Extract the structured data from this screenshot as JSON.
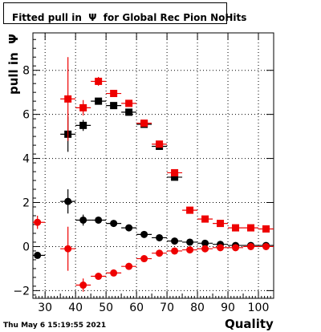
{
  "chart_data": {
    "type": "scatter",
    "title": "Fitted pull in  Ψ  for Global Rec Pion NoHits",
    "xlabel": "Quality",
    "ylabel": "pull in  Ψ",
    "xlim": [
      26,
      105
    ],
    "ylim": [
      -2.35,
      9.7
    ],
    "xticks": [
      30,
      40,
      50,
      60,
      70,
      80,
      90,
      100
    ],
    "yticks": [
      -2,
      0,
      2,
      4,
      6,
      8
    ],
    "grid": true,
    "series": [
      {
        "marker": "square",
        "color": "#000000",
        "points": [
          {
            "x": 37.5,
            "y": 5.1,
            "err": 0.8
          },
          {
            "x": 42.5,
            "y": 5.5,
            "err": 0.25
          },
          {
            "x": 47.5,
            "y": 6.6,
            "err": 0.15
          },
          {
            "x": 52.5,
            "y": 6.4,
            "err": 0.1
          },
          {
            "x": 57.5,
            "y": 6.1,
            "err": 0.1
          },
          {
            "x": 62.5,
            "y": 5.55,
            "err": 0.1
          },
          {
            "x": 67.5,
            "y": 4.55,
            "err": 0.1
          },
          {
            "x": 72.5,
            "y": 3.15,
            "err": 0.1
          }
        ]
      },
      {
        "marker": "square",
        "color": "#ee0000",
        "points": [
          {
            "x": 37.5,
            "y": 6.7,
            "err": 1.9
          },
          {
            "x": 42.5,
            "y": 6.3,
            "err": 0.35
          },
          {
            "x": 47.5,
            "y": 7.5,
            "err": 0.2
          },
          {
            "x": 52.5,
            "y": 6.95,
            "err": 0.1
          },
          {
            "x": 57.5,
            "y": 6.5,
            "err": 0.1
          },
          {
            "x": 62.5,
            "y": 5.6,
            "err": 0.1
          },
          {
            "x": 67.5,
            "y": 4.65,
            "err": 0.1
          },
          {
            "x": 72.5,
            "y": 3.35,
            "err": 0.1
          },
          {
            "x": 77.5,
            "y": 1.65,
            "err": 0.05
          },
          {
            "x": 82.5,
            "y": 1.25,
            "err": 0.05
          },
          {
            "x": 87.5,
            "y": 1.05,
            "err": 0.05
          },
          {
            "x": 92.5,
            "y": 0.85,
            "err": 0.05
          },
          {
            "x": 97.5,
            "y": 0.85,
            "err": 0.05
          },
          {
            "x": 102.5,
            "y": 0.8,
            "err": 0.05
          }
        ]
      },
      {
        "marker": "circle",
        "color": "#000000",
        "points": [
          {
            "x": 27.5,
            "y": -0.4,
            "err": 0.15
          },
          {
            "x": 37.5,
            "y": 2.05,
            "err": 0.55
          },
          {
            "x": 42.5,
            "y": 1.2,
            "err": 0.25
          },
          {
            "x": 47.5,
            "y": 1.2,
            "err": 0.1
          },
          {
            "x": 52.5,
            "y": 1.05,
            "err": 0.05
          },
          {
            "x": 57.5,
            "y": 0.85,
            "err": 0.05
          },
          {
            "x": 62.5,
            "y": 0.55,
            "err": 0.05
          },
          {
            "x": 67.5,
            "y": 0.4,
            "err": 0.05
          },
          {
            "x": 72.5,
            "y": 0.25,
            "err": 0.05
          },
          {
            "x": 77.5,
            "y": 0.2,
            "err": 0.05
          },
          {
            "x": 82.5,
            "y": 0.15,
            "err": 0.05
          },
          {
            "x": 87.5,
            "y": 0.1,
            "err": 0.05
          },
          {
            "x": 92.5,
            "y": 0.05,
            "err": 0.05
          },
          {
            "x": 97.5,
            "y": 0.05,
            "err": 0.05
          },
          {
            "x": 102.5,
            "y": 0.05,
            "err": 0.05
          }
        ]
      },
      {
        "marker": "circle",
        "color": "#ee0000",
        "points": [
          {
            "x": 27.5,
            "y": 1.1,
            "err": 0.3
          },
          {
            "x": 37.5,
            "y": -0.1,
            "err": 1.0
          },
          {
            "x": 42.5,
            "y": -1.75,
            "err": 0.3
          },
          {
            "x": 47.5,
            "y": -1.35,
            "err": 0.15
          },
          {
            "x": 52.5,
            "y": -1.2,
            "err": 0.1
          },
          {
            "x": 57.5,
            "y": -0.9,
            "err": 0.05
          },
          {
            "x": 62.5,
            "y": -0.55,
            "err": 0.05
          },
          {
            "x": 67.5,
            "y": -0.3,
            "err": 0.05
          },
          {
            "x": 72.5,
            "y": -0.2,
            "err": 0.05
          },
          {
            "x": 77.5,
            "y": -0.15,
            "err": 0.05
          },
          {
            "x": 82.5,
            "y": -0.1,
            "err": 0.05
          },
          {
            "x": 87.5,
            "y": -0.05,
            "err": 0.05
          },
          {
            "x": 92.5,
            "y": -0.05,
            "err": 0.05
          },
          {
            "x": 97.5,
            "y": 0.0,
            "err": 0.05
          },
          {
            "x": 102.5,
            "y": 0.0,
            "err": 0.05
          }
        ]
      }
    ]
  },
  "timestamp": "Thu May  6 15:19:55 2021"
}
